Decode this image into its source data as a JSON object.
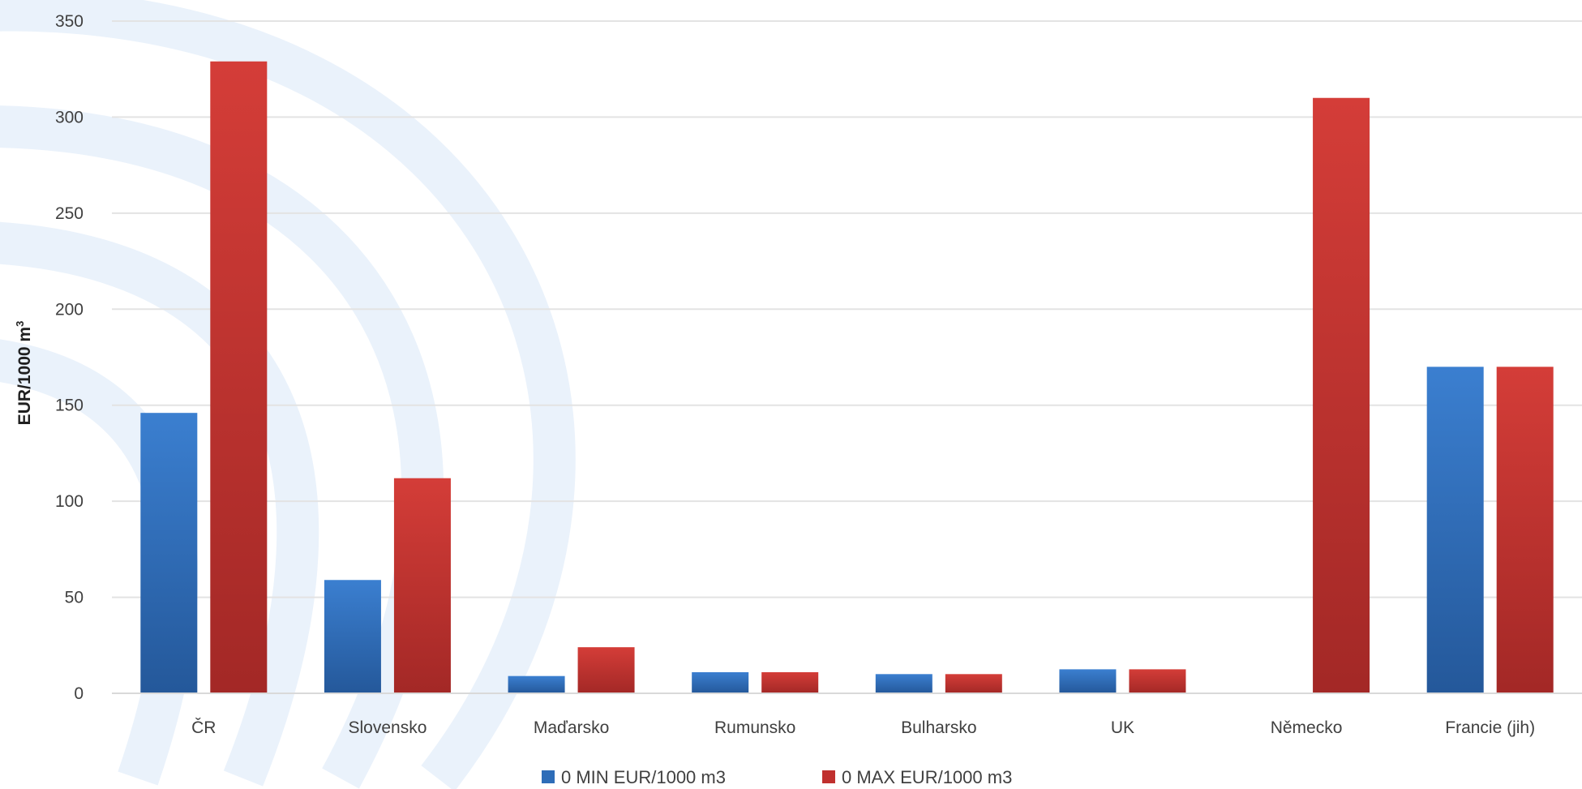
{
  "chart_data": {
    "type": "bar",
    "title": "",
    "xlabel": "",
    "ylabel": "EUR/1000 m",
    "ylabel_superscript": "3",
    "ylim": [
      0,
      350
    ],
    "yticks": [
      0,
      50,
      100,
      150,
      200,
      250,
      300,
      350
    ],
    "grid": true,
    "legend_position": "bottom",
    "categories": [
      "ČR",
      "Slovensko",
      "Maďarsko",
      "Rumunsko",
      "Bulharsko",
      "UK",
      "Německo",
      "Francie (jih)"
    ],
    "series": [
      {
        "name": "0 MIN EUR/1000 m3",
        "color": "#2e6db8",
        "values": [
          146,
          59,
          9,
          11,
          10,
          12.5,
          null,
          170
        ]
      },
      {
        "name": "0 MAX EUR/1000 m3",
        "color": "#c0302e",
        "values": [
          329,
          112,
          24,
          11,
          10,
          12.5,
          310,
          170
        ]
      }
    ]
  }
}
